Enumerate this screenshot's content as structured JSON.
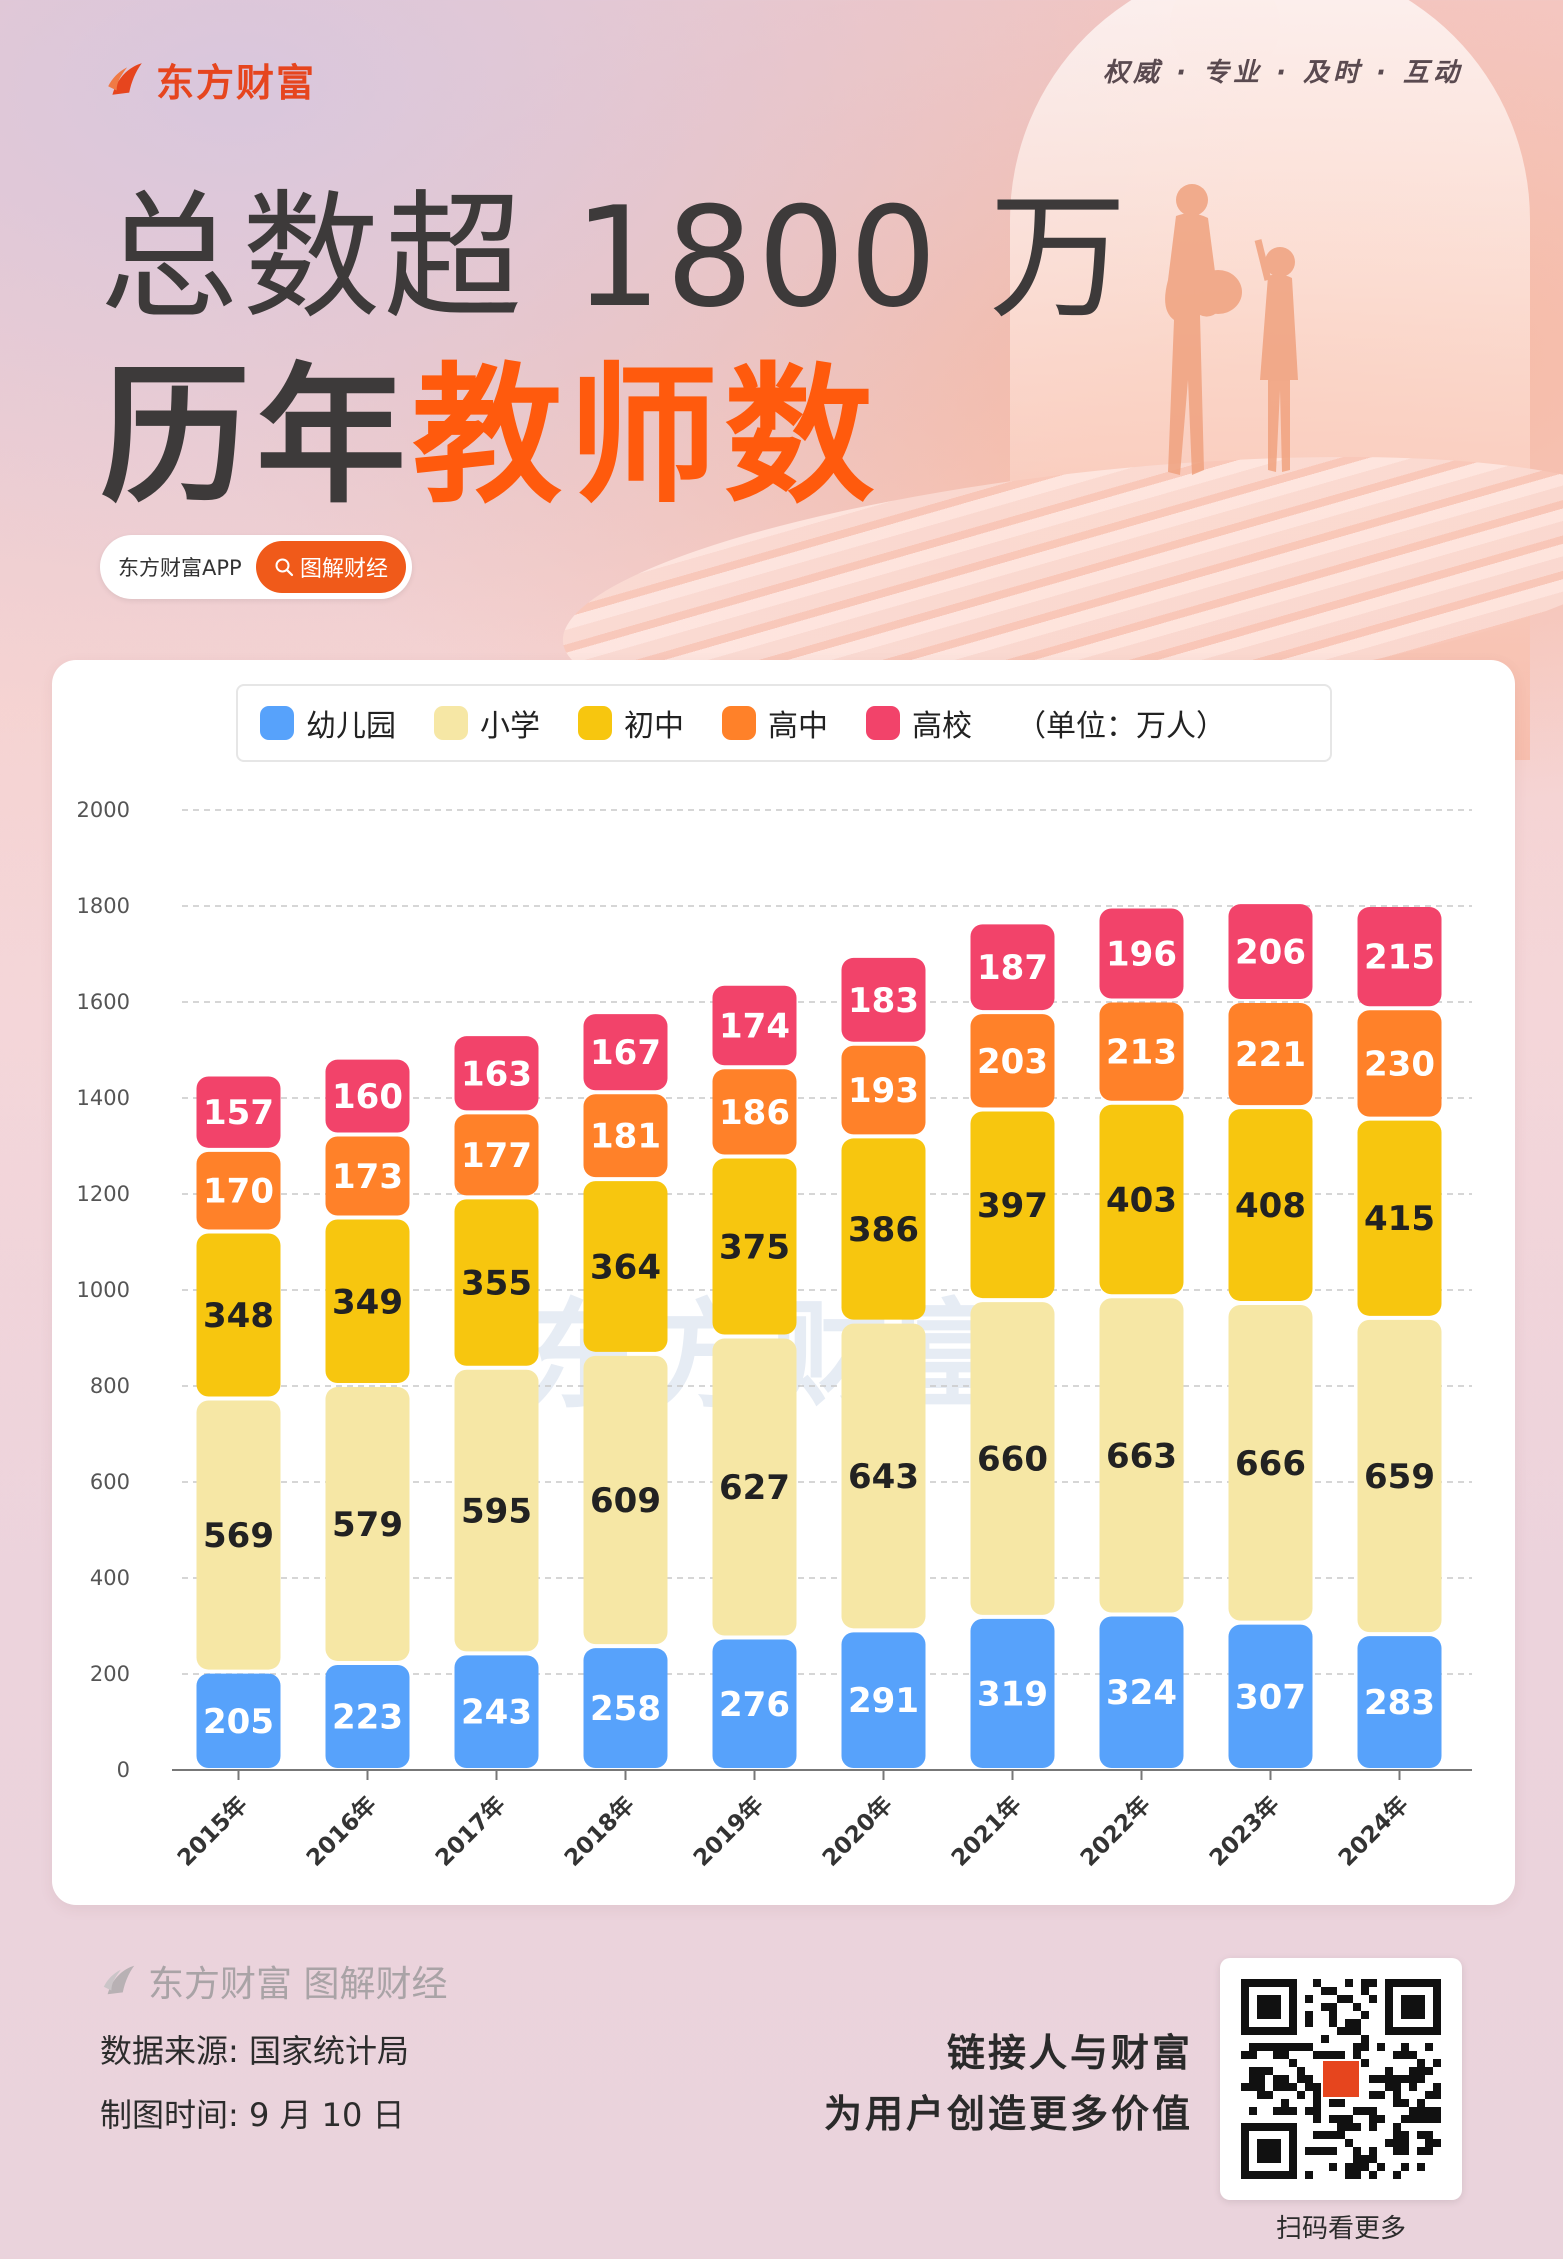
{
  "header": {
    "logo_text": "东方财富",
    "slogan": "权威 · 专业 · 及时 · 互动",
    "title_line1": "总数超 1800 万",
    "title_line2_plain": "历年",
    "title_line2_highlight": "教师数",
    "app_label": "东方财富APP",
    "app_button": "图解财经"
  },
  "legend": {
    "unit": "（单位：万人）"
  },
  "watermark": "东方财富",
  "chart_data": {
    "type": "bar",
    "stacked": true,
    "title": "历年教师数",
    "unit": "万人",
    "categories": [
      "2015年",
      "2016年",
      "2017年",
      "2018年",
      "2019年",
      "2020年",
      "2021年",
      "2022年",
      "2023年",
      "2024年"
    ],
    "series": [
      {
        "name": "幼儿园",
        "color": "#57a2fb",
        "values": [
          205,
          223,
          243,
          258,
          276,
          291,
          319,
          324,
          307,
          283
        ]
      },
      {
        "name": "小学",
        "color": "#f6e7a5",
        "values": [
          569,
          579,
          595,
          609,
          627,
          643,
          660,
          663,
          666,
          659
        ]
      },
      {
        "name": "初中",
        "color": "#f7c60f",
        "values": [
          348,
          349,
          355,
          364,
          375,
          386,
          397,
          403,
          408,
          415
        ]
      },
      {
        "name": "高中",
        "color": "#ff8129",
        "values": [
          170,
          173,
          177,
          181,
          186,
          193,
          203,
          213,
          221,
          230
        ]
      },
      {
        "name": "高校",
        "color": "#f2436a",
        "values": [
          157,
          160,
          163,
          167,
          174,
          183,
          187,
          196,
          206,
          215
        ]
      }
    ],
    "ylim": [
      0,
      2000
    ],
    "yticks": [
      0,
      200,
      400,
      600,
      800,
      1000,
      1200,
      1400,
      1600,
      1800,
      2000
    ],
    "grid": true
  },
  "footer": {
    "brand": "东方财富 图解财经",
    "source": "数据来源: 国家统计局",
    "date": "制图时间: 9 月 10 日",
    "tagline1": "链接人与财富",
    "tagline2": "为用户创造更多价值",
    "qr_caption": "扫码看更多"
  }
}
